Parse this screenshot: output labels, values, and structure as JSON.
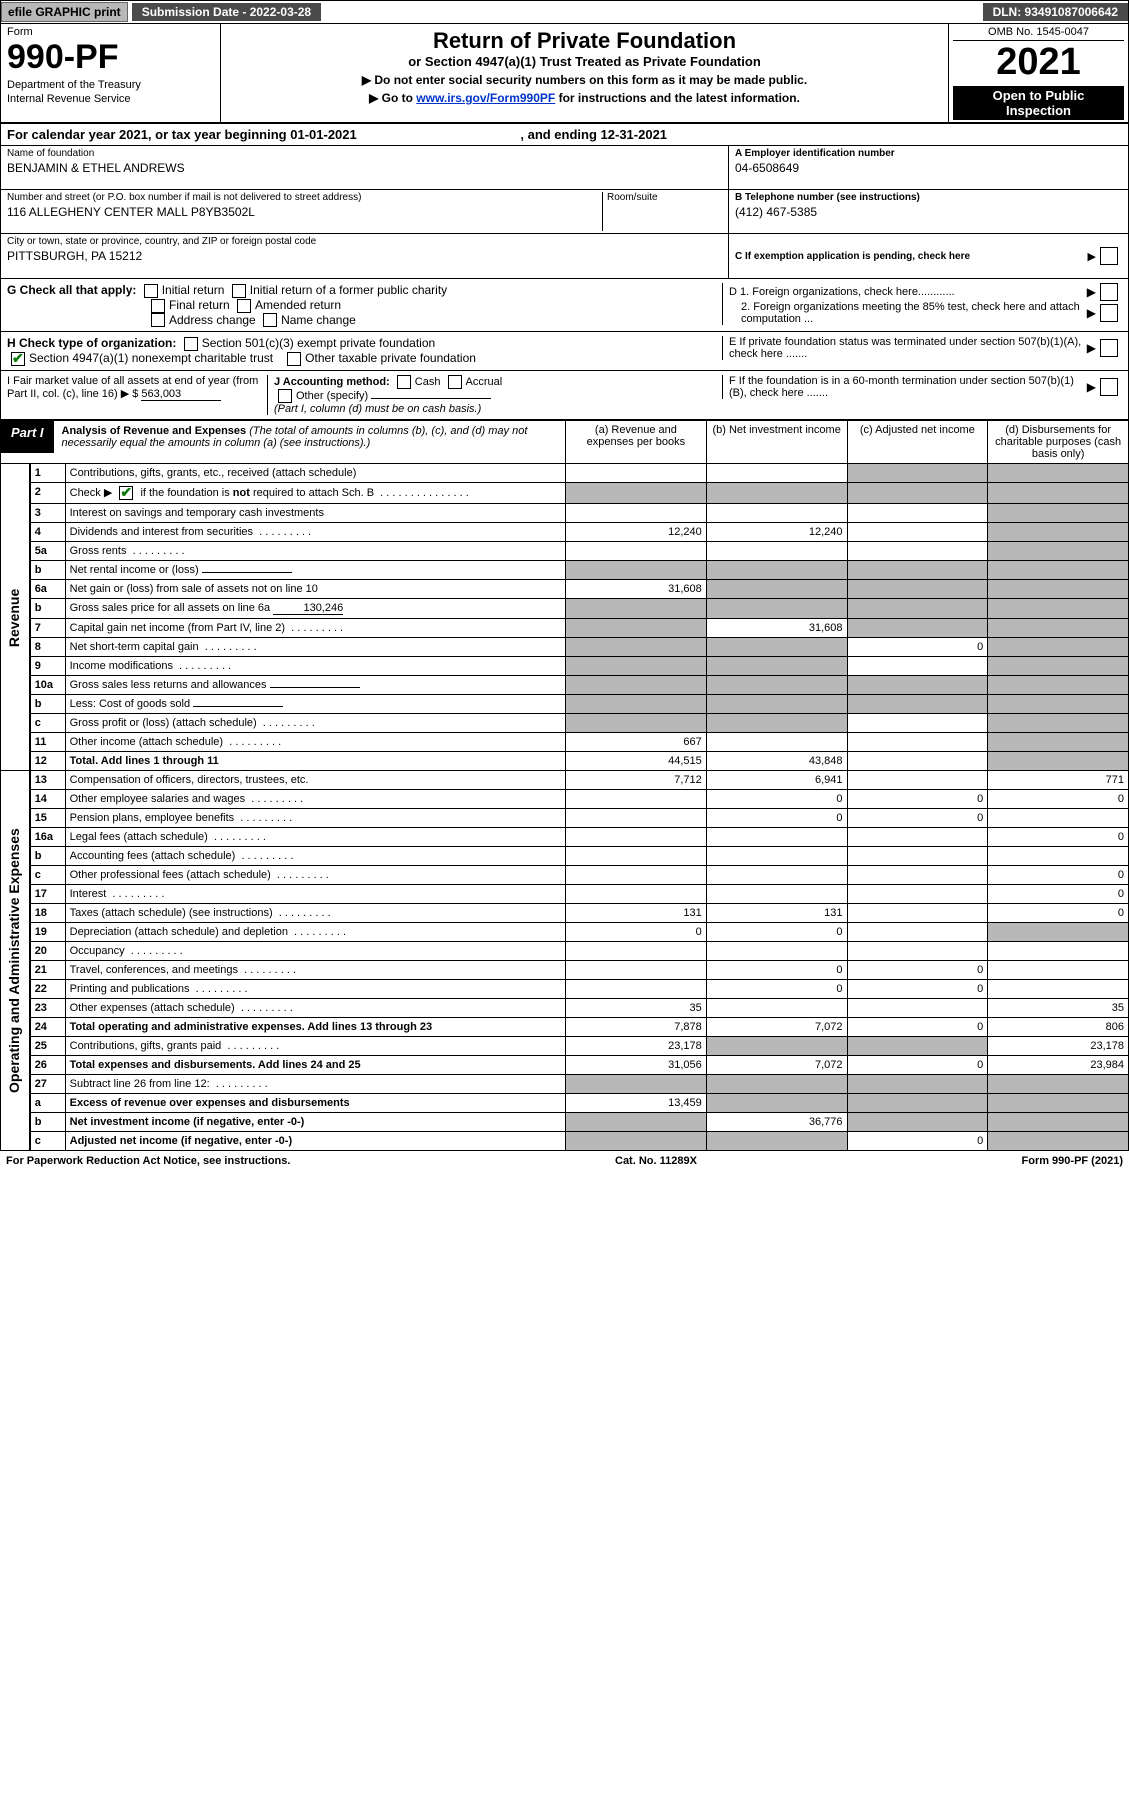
{
  "topbar": {
    "efile": "efile GRAPHIC print",
    "submission_label": "Submission Date - 2022-03-28",
    "dln": "DLN: 93491087006642"
  },
  "header": {
    "form_label": "Form",
    "form_number": "990-PF",
    "dept": "Department of the Treasury",
    "irs": "Internal Revenue Service",
    "title": "Return of Private Foundation",
    "subtitle": "or Section 4947(a)(1) Trust Treated as Private Foundation",
    "note1": "▶ Do not enter social security numbers on this form as it may be made public.",
    "note2_pre": "▶ Go to ",
    "note2_link": "www.irs.gov/Form990PF",
    "note2_post": " for instructions and the latest information.",
    "omb": "OMB No. 1545-0047",
    "year": "2021",
    "open1": "Open to Public",
    "open2": "Inspection"
  },
  "cal_year": {
    "pre": "For calendar year 2021, or tax year beginning ",
    "begin": "01-01-2021",
    "mid": " , and ending ",
    "end": "12-31-2021"
  },
  "info": {
    "name_label": "Name of foundation",
    "name": "BENJAMIN & ETHEL ANDREWS",
    "addr_label": "Number and street (or P.O. box number if mail is not delivered to street address)",
    "addr": "116 ALLEGHENY CENTER MALL P8YB3502L",
    "room_label": "Room/suite",
    "city_label": "City or town, state or province, country, and ZIP or foreign postal code",
    "city": "PITTSBURGH, PA  15212",
    "ein_label": "A Employer identification number",
    "ein": "04-6508649",
    "phone_label": "B Telephone number (see instructions)",
    "phone": "(412) 467-5385",
    "c_label": "C If exemption application is pending, check here",
    "d1_label": "D 1. Foreign organizations, check here............",
    "d2_label": "2. Foreign organizations meeting the 85% test, check here and attach computation ...",
    "e_label": "E  If private foundation status was terminated under section 507(b)(1)(A), check here .......",
    "f_label": "F  If the foundation is in a 60-month termination under section 507(b)(1)(B), check here .......",
    "g_label": "G Check all that apply:",
    "g_opts": [
      "Initial return",
      "Initial return of a former public charity",
      "Final return",
      "Amended return",
      "Address change",
      "Name change"
    ],
    "h_label": "H Check type of organization:",
    "h_opt1": "Section 501(c)(3) exempt private foundation",
    "h_opt2": "Section 4947(a)(1) nonexempt charitable trust",
    "h_opt3": "Other taxable private foundation",
    "i_label": "I Fair market value of all assets at end of year (from Part II, col. (c), line 16)",
    "i_value": "563,003",
    "j_label": "J Accounting method:",
    "j_opts": [
      "Cash",
      "Accrual"
    ],
    "j_other": "Other (specify)",
    "j_note": "(Part I, column (d) must be on cash basis.)"
  },
  "part1": {
    "label": "Part I",
    "title": "Analysis of Revenue and Expenses",
    "paren": "(The total of amounts in columns (b), (c), and (d) may not necessarily equal the amounts in column (a) (see instructions).)",
    "col_a": "(a)   Revenue and expenses per books",
    "col_b": "(b)   Net investment income",
    "col_c": "(c)   Adjusted net income",
    "col_d": "(d)   Disbursements for charitable purposes (cash basis only)"
  },
  "side_labels": {
    "revenue": "Revenue",
    "expenses": "Operating and Administrative Expenses"
  },
  "rows": [
    {
      "n": "1",
      "d": "Contributions, gifts, grants, etc., received (attach schedule)",
      "a": "",
      "b": "",
      "c": "sh",
      "dcol": "sh"
    },
    {
      "n": "2",
      "d": "Check ▶ ☑ if the foundation is not required to attach Sch. B",
      "a": "sh",
      "b": "sh",
      "c": "sh",
      "dcol": "sh",
      "checked": true
    },
    {
      "n": "3",
      "d": "Interest on savings and temporary cash investments",
      "a": "",
      "b": "",
      "c": "",
      "dcol": "sh"
    },
    {
      "n": "4",
      "d": "Dividends and interest from securities",
      "a": "12,240",
      "b": "12,240",
      "c": "",
      "dcol": "sh"
    },
    {
      "n": "5a",
      "d": "Gross rents",
      "a": "",
      "b": "",
      "c": "",
      "dcol": "sh"
    },
    {
      "n": "b",
      "d": "Net rental income or (loss)",
      "a": "sh",
      "b": "sh",
      "c": "sh",
      "dcol": "sh",
      "inset": true
    },
    {
      "n": "6a",
      "d": "Net gain or (loss) from sale of assets not on line 10",
      "a": "31,608",
      "b": "sh",
      "c": "sh",
      "dcol": "sh"
    },
    {
      "n": "b",
      "d": "Gross sales price for all assets on line 6a",
      "a": "sh",
      "b": "sh",
      "c": "sh",
      "dcol": "sh",
      "inset": true,
      "inset_val": "130,246"
    },
    {
      "n": "7",
      "d": "Capital gain net income (from Part IV, line 2)",
      "a": "sh",
      "b": "31,608",
      "c": "sh",
      "dcol": "sh"
    },
    {
      "n": "8",
      "d": "Net short-term capital gain",
      "a": "sh",
      "b": "sh",
      "c": "0",
      "dcol": "sh"
    },
    {
      "n": "9",
      "d": "Income modifications",
      "a": "sh",
      "b": "sh",
      "c": "",
      "dcol": "sh"
    },
    {
      "n": "10a",
      "d": "Gross sales less returns and allowances",
      "a": "sh",
      "b": "sh",
      "c": "sh",
      "dcol": "sh",
      "inset": true
    },
    {
      "n": "b",
      "d": "Less: Cost of goods sold",
      "a": "sh",
      "b": "sh",
      "c": "sh",
      "dcol": "sh",
      "inset": true
    },
    {
      "n": "c",
      "d": "Gross profit or (loss) (attach schedule)",
      "a": "sh",
      "b": "sh",
      "c": "",
      "dcol": "sh"
    },
    {
      "n": "11",
      "d": "Other income (attach schedule)",
      "a": "667",
      "b": "",
      "c": "",
      "dcol": "sh"
    },
    {
      "n": "12",
      "d": "Total. Add lines 1 through 11",
      "a": "44,515",
      "b": "43,848",
      "c": "",
      "dcol": "sh",
      "bold": true
    }
  ],
  "exp_rows": [
    {
      "n": "13",
      "d": "Compensation of officers, directors, trustees, etc.",
      "a": "7,712",
      "b": "6,941",
      "c": "",
      "dcol": "771"
    },
    {
      "n": "14",
      "d": "Other employee salaries and wages",
      "a": "",
      "b": "0",
      "c": "0",
      "dcol": "0"
    },
    {
      "n": "15",
      "d": "Pension plans, employee benefits",
      "a": "",
      "b": "0",
      "c": "0",
      "dcol": ""
    },
    {
      "n": "16a",
      "d": "Legal fees (attach schedule)",
      "a": "",
      "b": "",
      "c": "",
      "dcol": "0"
    },
    {
      "n": "b",
      "d": "Accounting fees (attach schedule)",
      "a": "",
      "b": "",
      "c": "",
      "dcol": ""
    },
    {
      "n": "c",
      "d": "Other professional fees (attach schedule)",
      "a": "",
      "b": "",
      "c": "",
      "dcol": "0"
    },
    {
      "n": "17",
      "d": "Interest",
      "a": "",
      "b": "",
      "c": "",
      "dcol": "0"
    },
    {
      "n": "18",
      "d": "Taxes (attach schedule) (see instructions)",
      "a": "131",
      "b": "131",
      "c": "",
      "dcol": "0"
    },
    {
      "n": "19",
      "d": "Depreciation (attach schedule) and depletion",
      "a": "0",
      "b": "0",
      "c": "",
      "dcol": "sh"
    },
    {
      "n": "20",
      "d": "Occupancy",
      "a": "",
      "b": "",
      "c": "",
      "dcol": ""
    },
    {
      "n": "21",
      "d": "Travel, conferences, and meetings",
      "a": "",
      "b": "0",
      "c": "0",
      "dcol": ""
    },
    {
      "n": "22",
      "d": "Printing and publications",
      "a": "",
      "b": "0",
      "c": "0",
      "dcol": ""
    },
    {
      "n": "23",
      "d": "Other expenses (attach schedule)",
      "a": "35",
      "b": "",
      "c": "",
      "dcol": "35"
    },
    {
      "n": "24",
      "d": "Total operating and administrative expenses. Add lines 13 through 23",
      "a": "7,878",
      "b": "7,072",
      "c": "0",
      "dcol": "806",
      "bold": true
    },
    {
      "n": "25",
      "d": "Contributions, gifts, grants paid",
      "a": "23,178",
      "b": "sh",
      "c": "sh",
      "dcol": "23,178"
    },
    {
      "n": "26",
      "d": "Total expenses and disbursements. Add lines 24 and 25",
      "a": "31,056",
      "b": "7,072",
      "c": "0",
      "dcol": "23,984",
      "bold": true
    },
    {
      "n": "27",
      "d": "Subtract line 26 from line 12:",
      "a": "sh",
      "b": "sh",
      "c": "sh",
      "dcol": "sh"
    },
    {
      "n": "a",
      "d": "Excess of revenue over expenses and disbursements",
      "a": "13,459",
      "b": "sh",
      "c": "sh",
      "dcol": "sh",
      "bold": true
    },
    {
      "n": "b",
      "d": "Net investment income (if negative, enter -0-)",
      "a": "sh",
      "b": "36,776",
      "c": "sh",
      "dcol": "sh",
      "bold": true
    },
    {
      "n": "c",
      "d": "Adjusted net income (if negative, enter -0-)",
      "a": "sh",
      "b": "sh",
      "c": "0",
      "dcol": "sh",
      "bold": true
    }
  ],
  "footer": {
    "left": "For Paperwork Reduction Act Notice, see instructions.",
    "mid": "Cat. No. 11289X",
    "right": "Form 990-PF (2021)"
  },
  "colors": {
    "shaded": "#b8b8b8",
    "black": "#000000",
    "link": "#0033cc",
    "check_green": "#0a7a0a"
  }
}
